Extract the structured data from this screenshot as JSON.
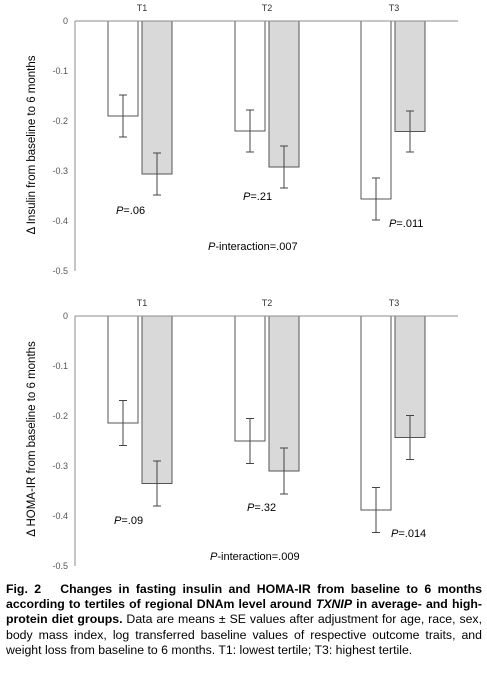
{
  "charts": [
    {
      "ylabel": "Δ Insulin from baseline to 6 months",
      "p_values": [
        "=.06",
        "=.21",
        "=.011"
      ],
      "interaction_label": "-interaction=.007"
    },
    {
      "ylabel": "Δ HOMA-IR from baseline to 6 months",
      "p_values": [
        "=.09",
        "=.32",
        "=.014"
      ],
      "interaction_label": "-interaction=.009"
    }
  ],
  "caption": {
    "fig_label": "Fig. 2",
    "title_part1": "Changes in fasting insulin and HOMA-IR from baseline to 6 months according to tertiles of regional DNAm level around ",
    "title_gene": "TXNIP",
    "title_part2": " in average- and high-protein diet groups.",
    "body": " Data are means ± SE values after adjustment for age, race, sex, body mass index, log transferred baseline values of respective outcome traits, and weight loss from baseline to 6 months. T1: lowest tertile; T3: highest tertile."
  },
  "colors": {
    "average_bar": "#ffffff",
    "high_bar": "#d9d9d9",
    "bar_edge": "#555555",
    "axis": "#8c8c8c"
  },
  "chart_data": [
    {
      "type": "bar",
      "categories": [
        "T1",
        "T2",
        "T3"
      ],
      "series": [
        {
          "values": [
            -0.19,
            -0.22,
            -0.356
          ],
          "errors": [
            0.042,
            0.042,
            0.042
          ]
        },
        {
          "values": [
            -0.306,
            -0.292,
            -0.221
          ],
          "errors": [
            0.042,
            0.042,
            0.041
          ]
        }
      ],
      "yticks": [
        "0",
        "-0.1",
        "-0.2",
        "-0.3",
        "-0.4",
        "-0.5"
      ],
      "ylim": [
        -0.5,
        0
      ],
      "xlabel": "",
      "ylabel": "Δ Insulin from baseline to 6 months",
      "annotations": [
        "P=.06",
        "P=.21",
        "P=.011",
        "P-interaction=.007"
      ]
    },
    {
      "type": "bar",
      "categories": [
        "T1",
        "T2",
        "T3"
      ],
      "series": [
        {
          "values": [
            -0.214,
            -0.25,
            -0.388
          ],
          "errors": [
            0.045,
            0.045,
            0.045
          ]
        },
        {
          "values": [
            -0.335,
            -0.31,
            -0.243
          ],
          "errors": [
            0.045,
            0.046,
            0.044
          ]
        }
      ],
      "yticks": [
        "0",
        "-0.1",
        "-0.2",
        "-0.3",
        "-0.4",
        "-0.5"
      ],
      "ylim": [
        -0.5,
        0
      ],
      "xlabel": "",
      "ylabel": "Δ HOMA-IR from baseline to 6 months",
      "annotations": [
        "P=.09",
        "P=.32",
        "P=.014",
        "P-interaction=.009"
      ]
    }
  ]
}
